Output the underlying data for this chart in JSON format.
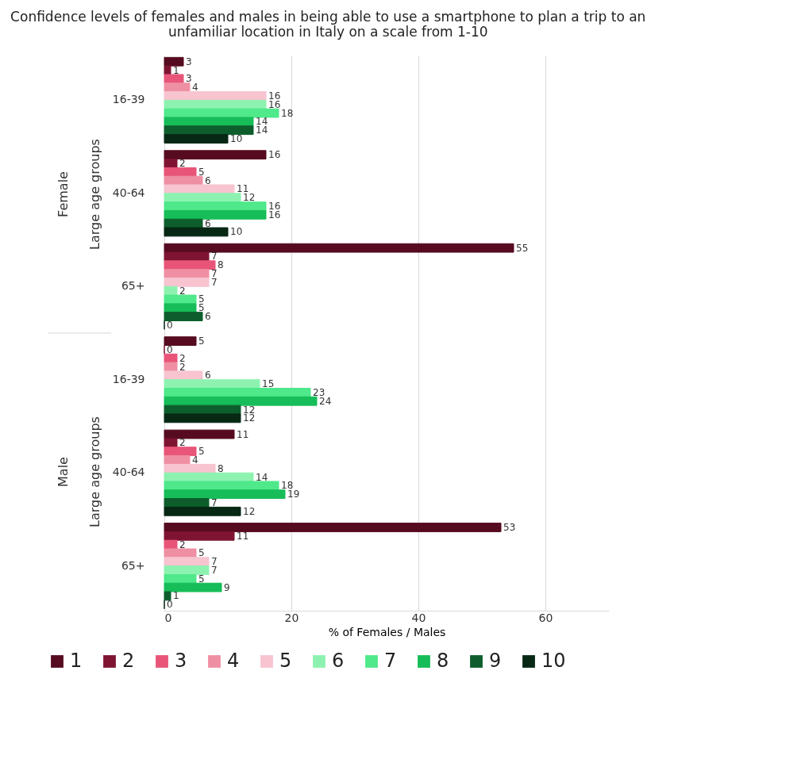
{
  "chart_data": {
    "type": "bar",
    "orientation": "horizontal",
    "title": "Confidence levels of females and males in being able to use a smartphone to plan a trip to an unfamiliar location in Italy on a scale from 1-10",
    "xlabel": "% of Females / Males",
    "categories": [
      "16-39",
      "40-64",
      "65+",
      "16-39",
      "40-64",
      "65+"
    ],
    "annotations": [
      "Female",
      "Large age groups",
      "Male",
      "Large age groups"
    ],
    "series": [
      {
        "name": "1",
        "color": "#560b20",
        "values": [
          3,
          16,
          55,
          5,
          11,
          53
        ]
      },
      {
        "name": "2",
        "color": "#7e1432",
        "values": [
          1,
          2,
          7,
          0,
          2,
          11
        ]
      },
      {
        "name": "3",
        "color": "#e85578",
        "values": [
          3,
          5,
          8,
          2,
          5,
          2
        ]
      },
      {
        "name": "4",
        "color": "#ef8fa3",
        "values": [
          4,
          6,
          7,
          2,
          4,
          5
        ]
      },
      {
        "name": "5",
        "color": "#f7c4d0",
        "values": [
          16,
          11,
          7,
          6,
          8,
          7
        ]
      },
      {
        "name": "6",
        "color": "#8df2b0",
        "values": [
          16,
          12,
          2,
          15,
          14,
          7
        ]
      },
      {
        "name": "7",
        "color": "#4fe88a",
        "values": [
          18,
          16,
          5,
          23,
          18,
          5
        ]
      },
      {
        "name": "8",
        "color": "#17bd58",
        "values": [
          14,
          16,
          5,
          24,
          19,
          9
        ]
      },
      {
        "name": "9",
        "color": "#0d5e2c",
        "values": [
          14,
          6,
          6,
          12,
          7,
          1
        ]
      },
      {
        "name": "10",
        "color": "#062814",
        "values": [
          10,
          10,
          0,
          12,
          12,
          0
        ]
      }
    ],
    "xlim": [
      0,
      70
    ],
    "xticks": [
      0,
      20,
      40,
      60
    ],
    "grid": "x",
    "legend": "bottom",
    "data_labels": true
  }
}
